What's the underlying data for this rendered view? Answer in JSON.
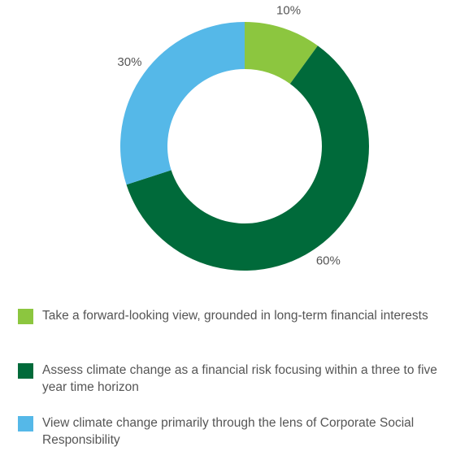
{
  "chart_data": {
    "type": "pie",
    "categories": [
      "Take a forward-looking view, grounded in long-term financial interests",
      "Assess climate change as a financial risk focusing within a three to five year time horizon",
      "View climate change primarily through the lens of Corporate Social Responsibility"
    ],
    "values": [
      10,
      60,
      30
    ],
    "value_labels": [
      "10%",
      "60%",
      "30%"
    ],
    "colors": [
      "#8cc63f",
      "#006a3a",
      "#55b8e8"
    ],
    "donut": true
  }
}
